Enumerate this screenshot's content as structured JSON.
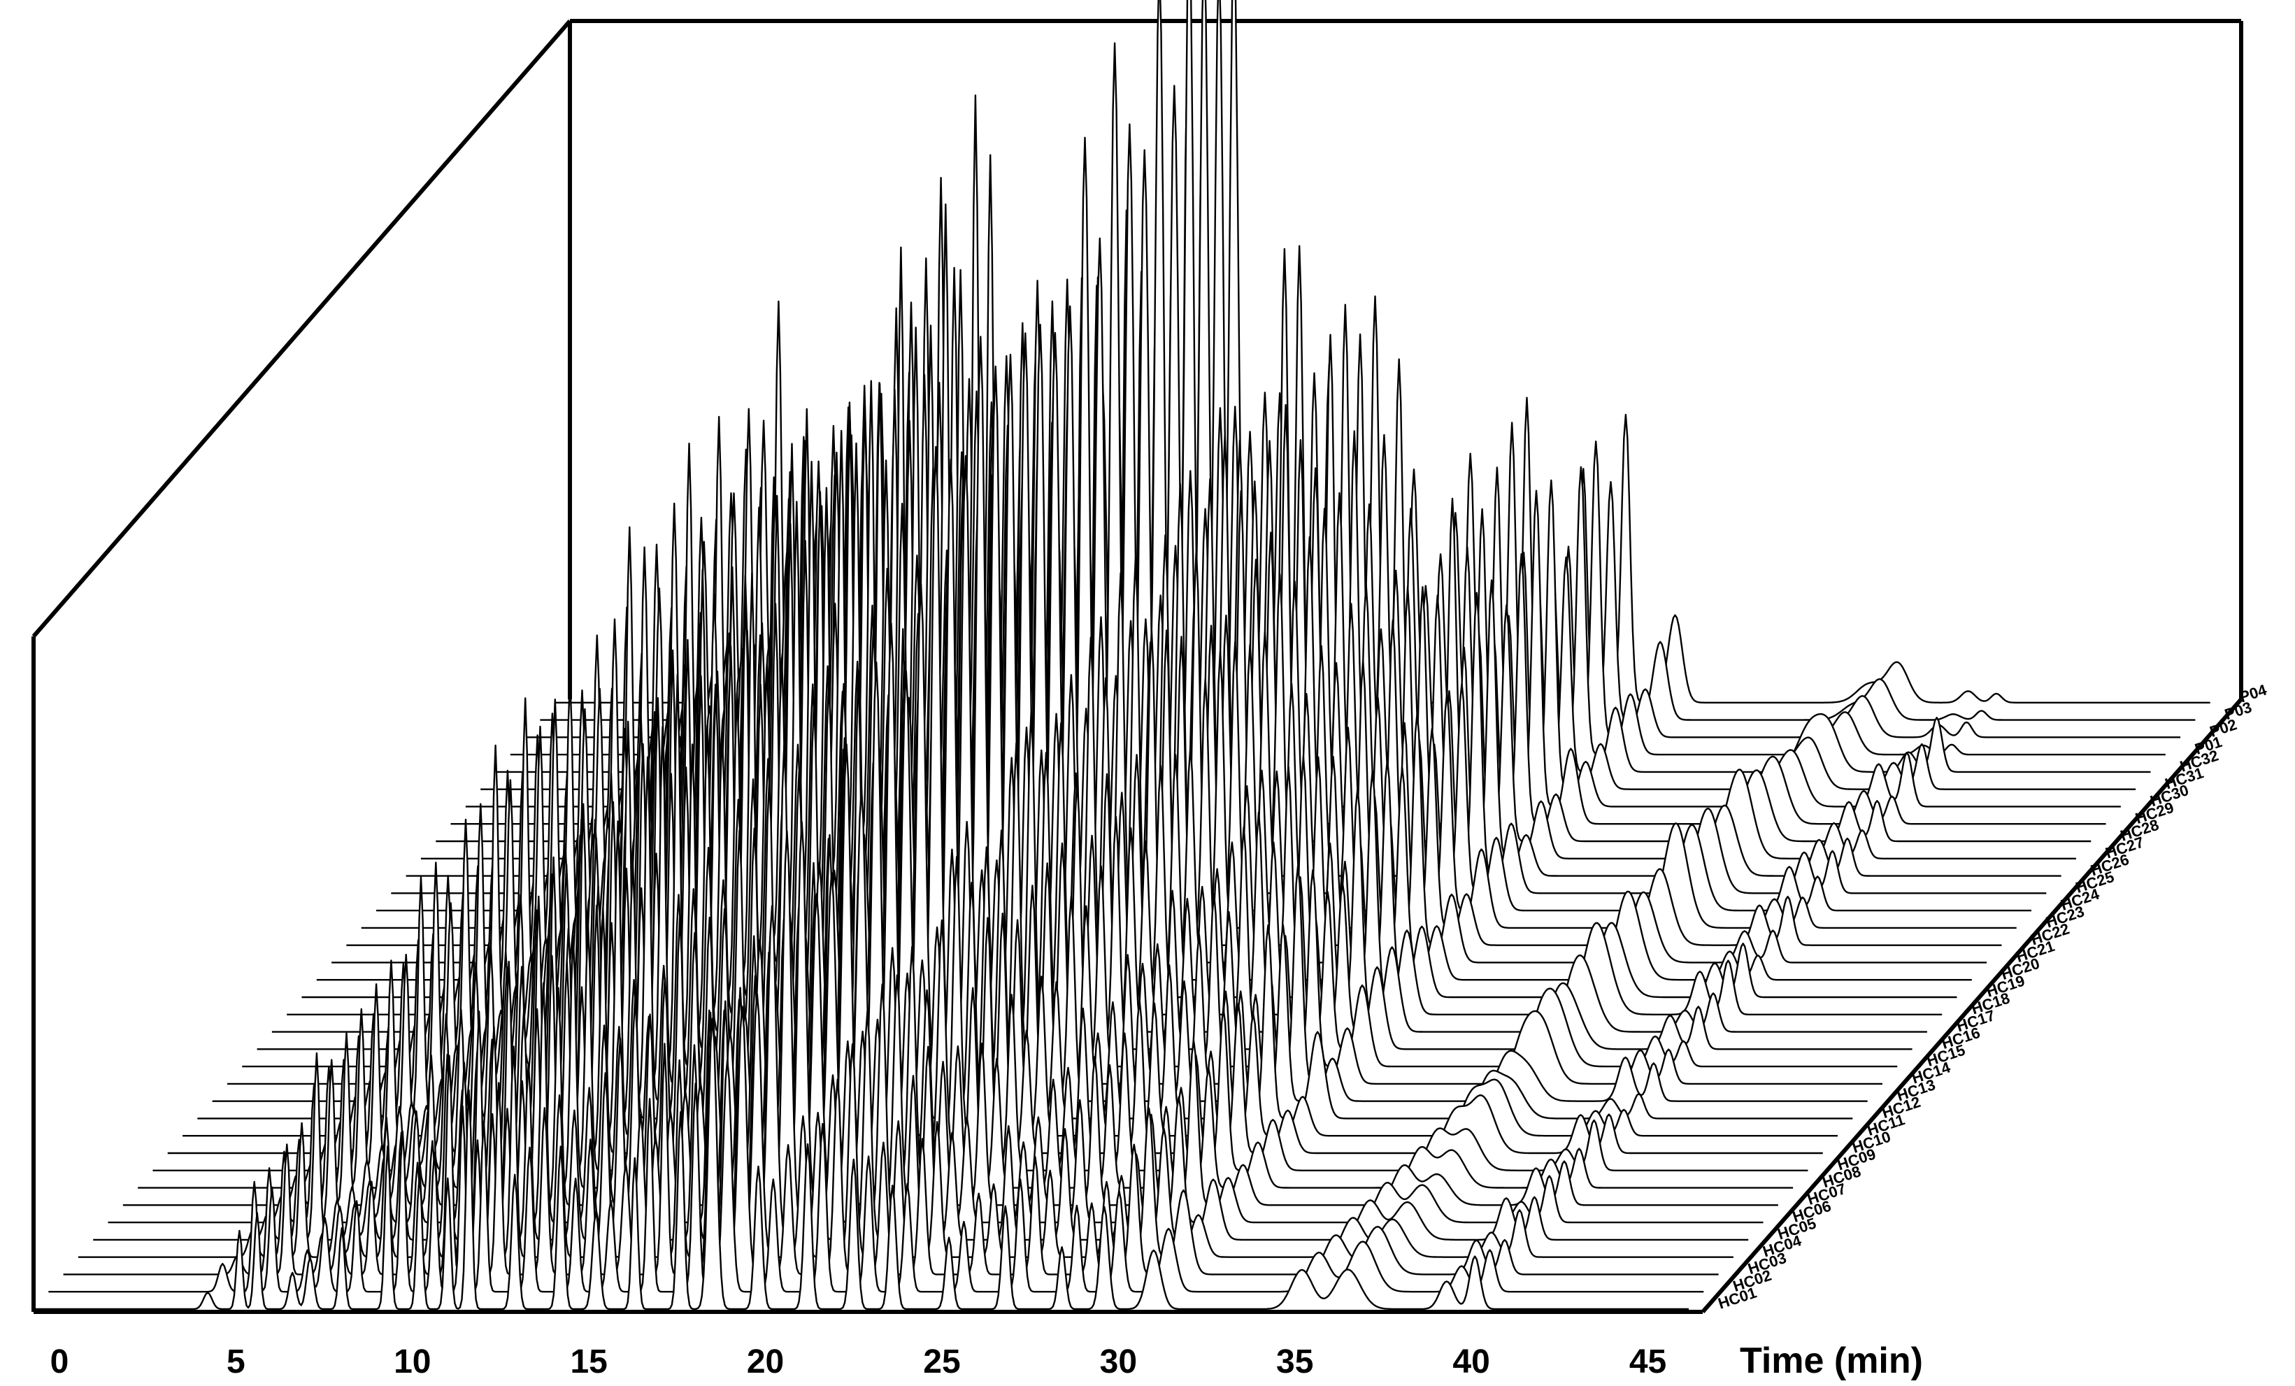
{
  "chart_data": {
    "type": "line",
    "style": "3d-waterfall",
    "title": "",
    "xlabel": "Time (min)",
    "ylabel": "",
    "x_ticks": [
      0,
      5,
      10,
      15,
      20,
      25,
      30,
      35,
      40,
      45
    ],
    "xlim": [
      0,
      46
    ],
    "grid": false,
    "legend": "none",
    "series_order": "front-to-back",
    "series_names": [
      "HC01",
      "HC02",
      "HC03",
      "HC04",
      "HC05",
      "HC06",
      "HC07",
      "HC08",
      "HC09",
      "HC10",
      "HC11",
      "HC12",
      "HC13",
      "HC14",
      "HC15",
      "HC16",
      "HC17",
      "HC18",
      "HC19",
      "HC20",
      "HC21",
      "HC22",
      "HC23",
      "HC24",
      "HC25",
      "HC26",
      "HC27",
      "HC28",
      "HC29",
      "HC30",
      "HC31",
      "HC32",
      "P01",
      "P02",
      "P03",
      "P04"
    ],
    "common_peaks": [
      {
        "t": 4.2,
        "h": 0.08,
        "w": 0.12
      },
      {
        "t": 5.1,
        "h": 0.34,
        "w": 0.08
      },
      {
        "t": 5.6,
        "h": 0.46,
        "w": 0.08
      },
      {
        "t": 6.6,
        "h": 0.15,
        "w": 0.1
      },
      {
        "t": 7.1,
        "h": 0.22,
        "w": 0.1
      },
      {
        "t": 8.0,
        "h": 0.38,
        "w": 0.08
      },
      {
        "t": 9.3,
        "h": 0.48,
        "w": 0.08
      },
      {
        "t": 10.2,
        "h": 0.6,
        "w": 0.08
      },
      {
        "t": 11.0,
        "h": 0.52,
        "w": 0.08
      },
      {
        "t": 11.6,
        "h": 0.66,
        "w": 0.08
      },
      {
        "t": 12.9,
        "h": 0.44,
        "w": 0.09
      },
      {
        "t": 14.2,
        "h": 0.52,
        "w": 0.09
      },
      {
        "t": 15.2,
        "h": 0.36,
        "w": 0.1
      },
      {
        "t": 16.3,
        "h": 0.62,
        "w": 0.08
      },
      {
        "t": 17.6,
        "h": 0.72,
        "w": 0.09
      },
      {
        "t": 18.5,
        "h": 1.0,
        "w": 0.12
      },
      {
        "t": 19.8,
        "h": 0.42,
        "w": 0.1
      },
      {
        "t": 21.2,
        "h": 0.55,
        "w": 0.1
      },
      {
        "t": 22.5,
        "h": 0.48,
        "w": 0.1
      },
      {
        "t": 23.6,
        "h": 0.38,
        "w": 0.1
      },
      {
        "t": 25.2,
        "h": 0.3,
        "w": 0.1
      },
      {
        "t": 26.8,
        "h": 0.34,
        "w": 0.1
      },
      {
        "t": 28.4,
        "h": 0.25,
        "w": 0.1
      },
      {
        "t": 29.6,
        "h": 0.38,
        "w": 0.12
      },
      {
        "t": 31.0,
        "h": 0.08,
        "w": 0.2
      },
      {
        "t": 36.5,
        "h": 0.06,
        "w": 0.35
      },
      {
        "t": 39.3,
        "h": 0.04,
        "w": 0.2
      },
      {
        "t": 40.1,
        "h": 0.05,
        "w": 0.15
      }
    ]
  }
}
